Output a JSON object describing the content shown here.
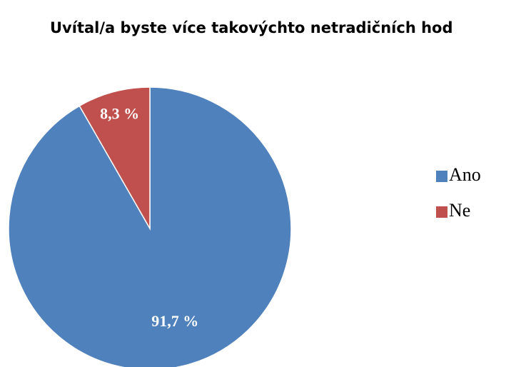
{
  "chart_data": {
    "type": "pie",
    "title": "Uvítal/a byste více takovýchto netradičních hod",
    "categories": [
      "Ano",
      "Ne"
    ],
    "values": [
      91.7,
      8.3
    ],
    "value_labels": [
      "91,7 %",
      "8,3 %"
    ],
    "colors": [
      "#4f81bd",
      "#c0504d"
    ],
    "legend": "right"
  }
}
